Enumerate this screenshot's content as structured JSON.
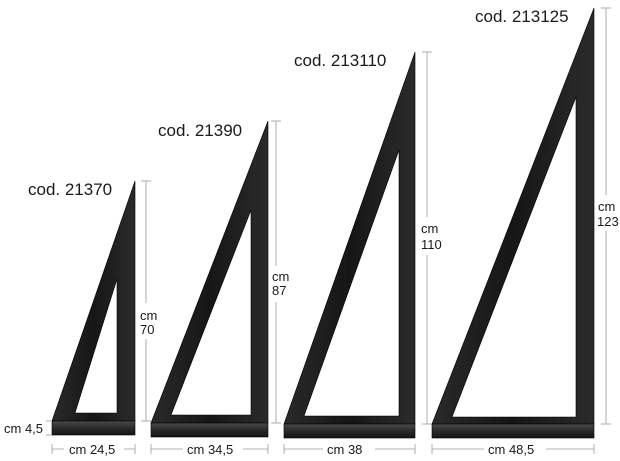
{
  "products": [
    {
      "code": "cod. 21370",
      "height_unit": "cm",
      "height_value": "70",
      "width_label": "cm 24,5"
    },
    {
      "code": "cod. 21390",
      "height_unit": "cm",
      "height_value": "87",
      "width_label": "cm 34,5"
    },
    {
      "code": "cod. 213110",
      "height_unit": "cm",
      "height_value": "110",
      "width_label": "cm 38"
    },
    {
      "code": "cod. 213125",
      "height_unit": "cm",
      "height_value": "123",
      "width_label": "cm 48,5"
    }
  ],
  "base_thickness_label": "cm 4,5",
  "colors": {
    "body": "#1c1c1c",
    "base": "#333333",
    "edge": "#000000",
    "guide": "#9a9a9a"
  }
}
